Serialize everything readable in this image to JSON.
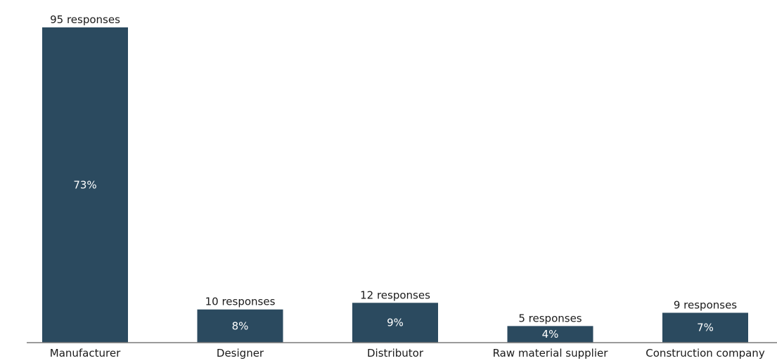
{
  "chart_data": {
    "type": "bar",
    "categories": [
      "Manufacturer",
      "Designer",
      "Distributor",
      "Raw material supplier",
      "Construction company"
    ],
    "values": [
      95,
      10,
      12,
      5,
      9
    ],
    "value_labels": [
      "95 responses",
      "10 responses",
      "12 responses",
      "5 responses",
      "9 responses"
    ],
    "percent_labels": [
      "73%",
      "8%",
      "9%",
      "4%",
      "7%"
    ],
    "title": "",
    "xlabel": "",
    "ylabel": "",
    "ylim": [
      0,
      95
    ],
    "grid": false,
    "legend": "none",
    "colors": {
      "bar": "#2b4a5f",
      "axis": "#7a7a7a",
      "text": "#1a1a1a",
      "bar_text": "#ffffff"
    }
  }
}
